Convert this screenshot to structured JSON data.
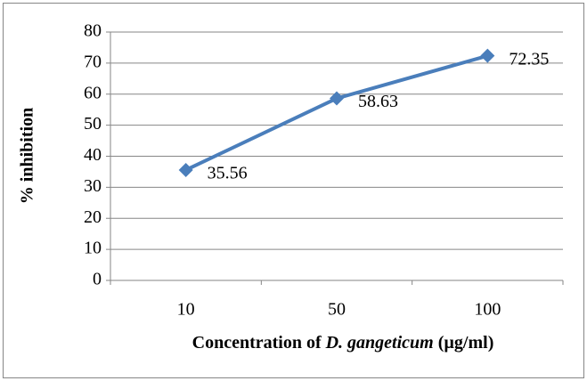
{
  "chart_data": {
    "type": "line",
    "categories": [
      "10",
      "50",
      "100"
    ],
    "series": [
      {
        "color": "#4a7ebb",
        "values": [
          35.56,
          58.63,
          72.35
        ]
      }
    ],
    "ylim": [
      0,
      80
    ],
    "yticks": [
      0,
      10,
      20,
      30,
      40,
      50,
      60,
      70,
      80
    ],
    "grid": true,
    "y_label": "% inhibition",
    "x_label": [
      "Concentration of ",
      "D. gangeticum",
      " (µg/ml)"
    ]
  }
}
